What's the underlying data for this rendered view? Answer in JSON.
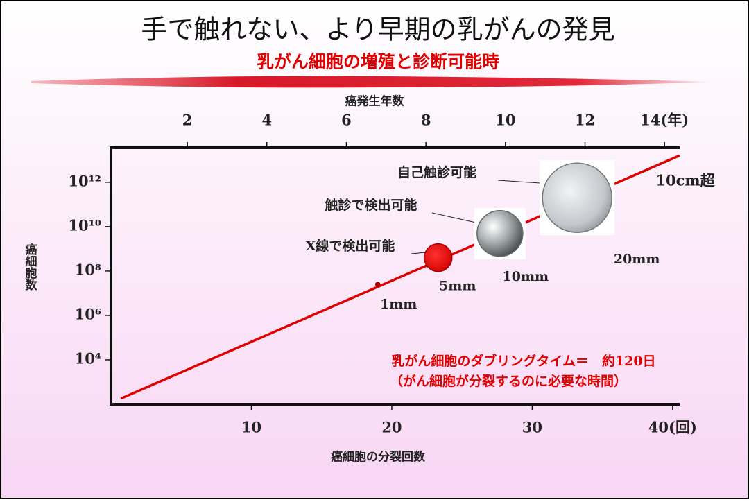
{
  "chart_data": {
    "type": "line",
    "title": "手で触れない、より早期の乳がんの発見",
    "subtitle": "乳がん細胞の増殖と診断可能時",
    "x_label": "癌細胞の分裂回数",
    "x2_label": "癌発生年数",
    "y_label": "癌細胞数",
    "log_y": true,
    "xlim": [
      0,
      40.5
    ],
    "xticks": [
      10,
      20,
      30,
      {
        "value": 40,
        "label": "40(回)"
      }
    ],
    "x2lim": [
      0.08,
      14.38
    ],
    "x2ticks": [
      2,
      4,
      6,
      8,
      10,
      12,
      {
        "value": 14,
        "label": "14(年)"
      }
    ],
    "ylim": [
      100,
      36000000000000
    ],
    "yticks": [
      {
        "value": 10000,
        "label": "10⁴"
      },
      {
        "value": 1000000,
        "label": "10⁶"
      },
      {
        "value": 100000000,
        "label": "10⁸"
      },
      {
        "value": 10000000000,
        "label": "10¹⁰"
      },
      {
        "value": 1000000000000,
        "label": "10¹²"
      }
    ],
    "series": [
      {
        "color": "#e00000",
        "x": [
          0.7,
          40.5
        ],
        "values": [
          180,
          16000000000000
        ]
      }
    ],
    "points": [
      {
        "x": 19,
        "y": 25000000,
        "label": "1mm"
      },
      {
        "x": 23.3,
        "y": 400000000,
        "label": "5mm",
        "note": "X線で検出可能"
      },
      {
        "x": 27.7,
        "y": 4900000000,
        "label": "10mm",
        "note": "触診で検出可能"
      },
      {
        "x": 33.2,
        "y": 200000000000,
        "label": "20mm",
        "note": "自己触診可能"
      }
    ],
    "end_label": "10cm超",
    "annotation": [
      "乳がん細胞のダブリングタイム＝　約120日",
      "（がん細胞が分裂するのに必要な時間）"
    ]
  }
}
